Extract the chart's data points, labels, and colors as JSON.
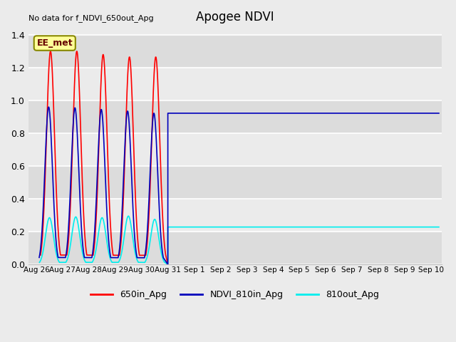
{
  "title": "Apogee NDVI",
  "top_left_text": "No data for f_NDVI_650out_Apg",
  "legend_box_text": "EE_met",
  "legend_box_facecolor": "#FFFF99",
  "legend_box_edgecolor": "#888800",
  "legend_box_textcolor": "#660000",
  "ylim": [
    0.0,
    1.45
  ],
  "yticks": [
    0.0,
    0.2,
    0.4,
    0.6,
    0.8,
    1.0,
    1.2,
    1.4
  ],
  "background_color": "#EBEBEB",
  "plot_bg_color": "#EBEBEB",
  "grid_color": "#FFFFFF",
  "series_colors": {
    "650in_Apg": "#FF0000",
    "NDVI_810in_Apg": "#0000BB",
    "810out_Apg": "#00EEEE"
  },
  "flat_blue_value": 0.922,
  "flat_cyan_value": 0.228,
  "x_tick_labels": [
    "Aug 26",
    "Aug 27",
    "Aug 28",
    "Aug 29",
    "Aug 30",
    "Aug 31",
    "Sep 1",
    "Sep 2",
    "Sep 3",
    "Sep 4",
    "Sep 5",
    "Sep 6",
    "Sep 7",
    "Sep 8",
    "Sep 9",
    "Sep 10"
  ],
  "x_tick_positions": [
    0,
    1,
    2,
    3,
    4,
    5,
    6,
    7,
    8,
    9,
    10,
    11,
    12,
    13,
    14,
    15
  ],
  "line_labels": [
    "650in_Apg",
    "NDVI_810in_Apg",
    "810out_Apg"
  ],
  "linewidth": 1.2,
  "title_fontsize": 12
}
